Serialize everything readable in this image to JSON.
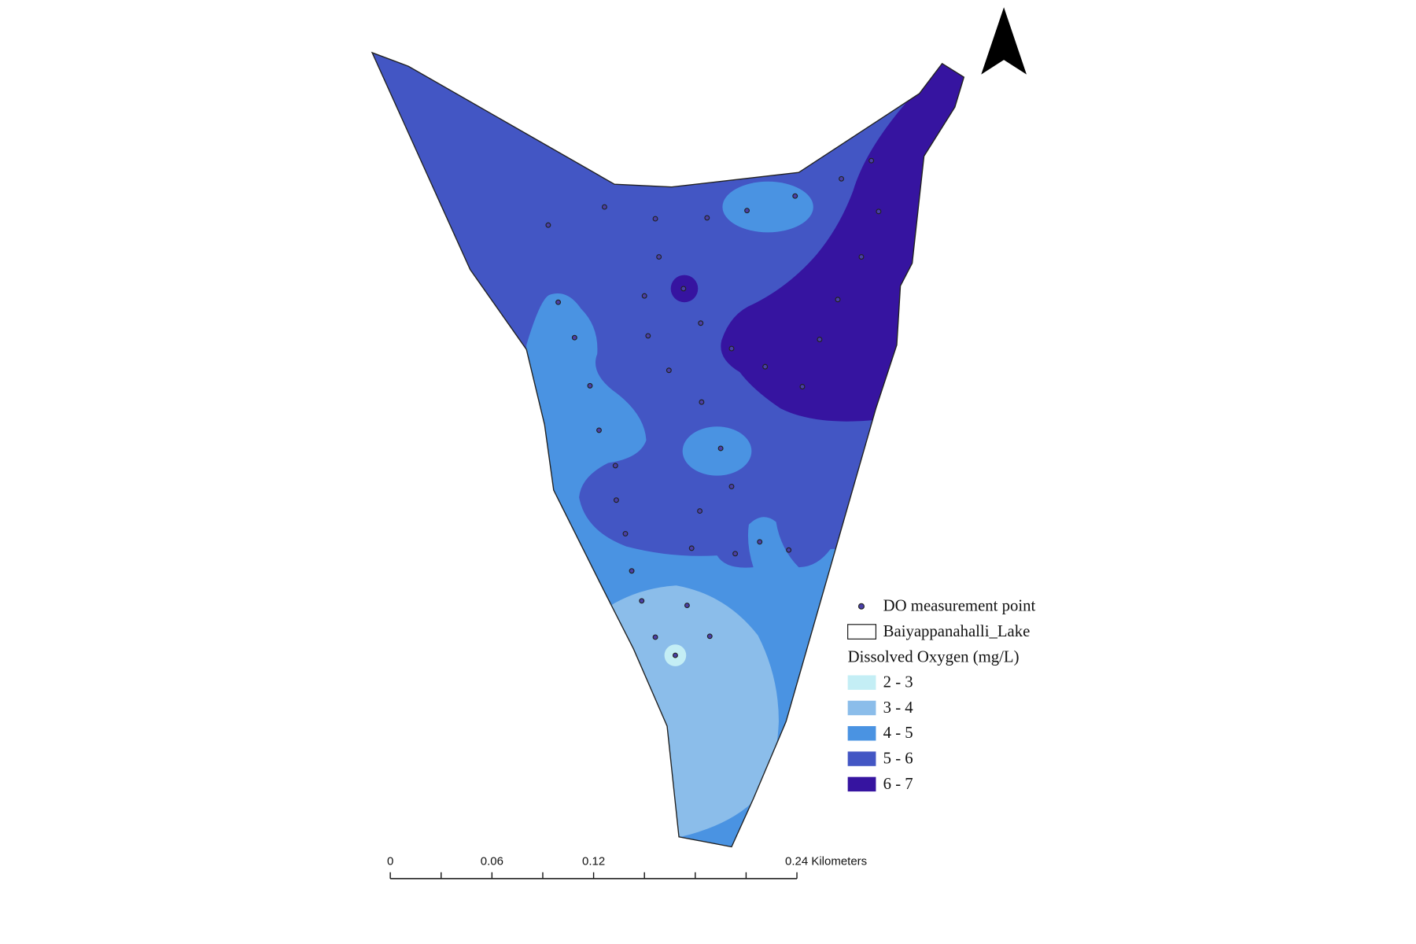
{
  "legend": {
    "point_label": "DO measurement point",
    "lake_label": "Baiyappanahalli_Lake",
    "title": "Dissolved Oxygen (mg/L)",
    "classes": [
      {
        "label": "2 - 3",
        "color": "#c4eef5"
      },
      {
        "label": "3 - 4",
        "color": "#8bbdea"
      },
      {
        "label": "4 - 5",
        "color": "#4a93e2"
      },
      {
        "label": "5 - 6",
        "color": "#4356c4"
      },
      {
        "label": "6 - 7",
        "color": "#3614a0"
      }
    ]
  },
  "scale_bar": {
    "labels": [
      "0",
      "0.06",
      "0.12",
      "0.24 Kilometers"
    ]
  }
}
